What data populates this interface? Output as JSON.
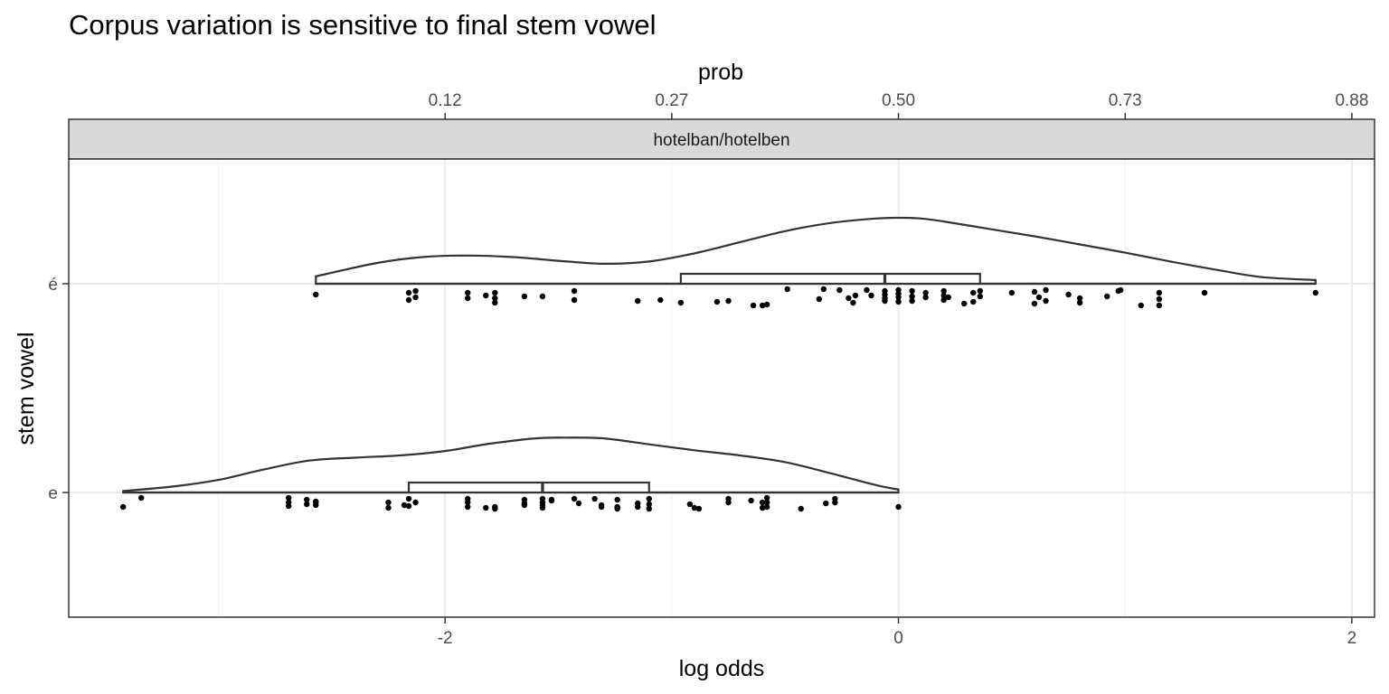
{
  "chart_data": {
    "type": "raincloud",
    "title": "Corpus variation is sensitive to final stem vowel",
    "facet_label": "hotelban/hotelben",
    "xlabel": "log odds",
    "ylabel": "stem vowel",
    "top_axis_label": "prob",
    "xlim": [
      -3.66,
      2.1
    ],
    "x_ticks": [
      -2,
      0,
      2
    ],
    "x_tick_labels": [
      "-2",
      "0",
      "2"
    ],
    "top_ticks": [
      -2,
      -1,
      0,
      1,
      2
    ],
    "top_tick_labels": [
      "0.12",
      "0.27",
      "0.50",
      "0.73",
      "0.88"
    ],
    "grid": true,
    "categories": [
      "é",
      "e"
    ],
    "groups": [
      {
        "label": "é",
        "density_x": [
          -2.57,
          -2.3,
          -2.1,
          -1.9,
          -1.7,
          -1.5,
          -1.3,
          -1.1,
          -0.9,
          -0.7,
          -0.5,
          -0.3,
          -0.1,
          0.0,
          0.1,
          0.2,
          0.4,
          0.6,
          0.8,
          1.0,
          1.2,
          1.4,
          1.6,
          1.84
        ],
        "density_y": [
          0.1,
          0.28,
          0.36,
          0.38,
          0.36,
          0.31,
          0.27,
          0.3,
          0.41,
          0.56,
          0.71,
          0.82,
          0.88,
          0.89,
          0.88,
          0.84,
          0.74,
          0.64,
          0.53,
          0.42,
          0.3,
          0.19,
          0.09,
          0.05
        ],
        "box": {
          "lower_whisker": -2.57,
          "q1": -0.96,
          "median": -0.06,
          "q3": 0.36,
          "upper_whisker": 1.84
        },
        "points": [
          {
            "x": -2.57,
            "j": -0.12
          },
          {
            "x": -2.16,
            "j": -0.1
          },
          {
            "x": -2.13,
            "j": -0.08
          },
          {
            "x": -2.13,
            "j": -0.15
          },
          {
            "x": -2.16,
            "j": -0.18
          },
          {
            "x": -1.9,
            "j": -0.1
          },
          {
            "x": -1.9,
            "j": -0.16
          },
          {
            "x": -1.82,
            "j": -0.13
          },
          {
            "x": -1.78,
            "j": -0.1
          },
          {
            "x": -1.78,
            "j": -0.16
          },
          {
            "x": -1.78,
            "j": -0.21
          },
          {
            "x": -1.65,
            "j": -0.14
          },
          {
            "x": -1.57,
            "j": -0.14
          },
          {
            "x": -1.43,
            "j": -0.08
          },
          {
            "x": -1.43,
            "j": -0.18
          },
          {
            "x": -1.15,
            "j": -0.19
          },
          {
            "x": -1.05,
            "j": -0.18
          },
          {
            "x": -0.96,
            "j": -0.21
          },
          {
            "x": -0.8,
            "j": -0.2
          },
          {
            "x": -0.75,
            "j": -0.19
          },
          {
            "x": -0.64,
            "j": -0.24
          },
          {
            "x": -0.6,
            "j": -0.24
          },
          {
            "x": -0.58,
            "j": -0.23
          },
          {
            "x": -0.49,
            "j": -0.06
          },
          {
            "x": -0.35,
            "j": -0.17
          },
          {
            "x": -0.33,
            "j": -0.06
          },
          {
            "x": -0.26,
            "j": -0.07
          },
          {
            "x": -0.22,
            "j": -0.16
          },
          {
            "x": -0.2,
            "j": -0.21
          },
          {
            "x": -0.19,
            "j": -0.13
          },
          {
            "x": -0.14,
            "j": -0.07
          },
          {
            "x": -0.12,
            "j": -0.13
          },
          {
            "x": -0.06,
            "j": -0.08
          },
          {
            "x": -0.06,
            "j": -0.12
          },
          {
            "x": -0.06,
            "j": -0.16
          },
          {
            "x": -0.06,
            "j": -0.19
          },
          {
            "x": 0.0,
            "j": -0.07
          },
          {
            "x": 0.0,
            "j": -0.11
          },
          {
            "x": 0.0,
            "j": -0.15
          },
          {
            "x": 0.0,
            "j": -0.2
          },
          {
            "x": 0.06,
            "j": -0.08
          },
          {
            "x": 0.06,
            "j": -0.14
          },
          {
            "x": 0.06,
            "j": -0.19
          },
          {
            "x": 0.12,
            "j": -0.1
          },
          {
            "x": 0.12,
            "j": -0.15
          },
          {
            "x": 0.2,
            "j": -0.08
          },
          {
            "x": 0.2,
            "j": -0.13
          },
          {
            "x": 0.2,
            "j": -0.18
          },
          {
            "x": 0.22,
            "j": -0.15
          },
          {
            "x": 0.29,
            "j": -0.22
          },
          {
            "x": 0.33,
            "j": -0.2
          },
          {
            "x": 0.33,
            "j": -0.1
          },
          {
            "x": 0.36,
            "j": -0.08
          },
          {
            "x": 0.36,
            "j": -0.14
          },
          {
            "x": 0.5,
            "j": -0.1
          },
          {
            "x": 0.6,
            "j": -0.09
          },
          {
            "x": 0.6,
            "j": -0.22
          },
          {
            "x": 0.62,
            "j": -0.15
          },
          {
            "x": 0.65,
            "j": -0.19
          },
          {
            "x": 0.65,
            "j": -0.07
          },
          {
            "x": 0.75,
            "j": -0.12
          },
          {
            "x": 0.8,
            "j": -0.16
          },
          {
            "x": 0.8,
            "j": -0.21
          },
          {
            "x": 0.92,
            "j": -0.14
          },
          {
            "x": 0.97,
            "j": -0.08
          },
          {
            "x": 0.98,
            "j": -0.07
          },
          {
            "x": 1.07,
            "j": -0.24
          },
          {
            "x": 1.15,
            "j": -0.1
          },
          {
            "x": 1.15,
            "j": -0.17
          },
          {
            "x": 1.15,
            "j": -0.24
          },
          {
            "x": 1.35,
            "j": -0.1
          },
          {
            "x": 1.84,
            "j": -0.1
          }
        ]
      },
      {
        "label": "e",
        "density_x": [
          -3.42,
          -3.2,
          -3.0,
          -2.8,
          -2.6,
          -2.4,
          -2.2,
          -2.0,
          -1.8,
          -1.6,
          -1.47,
          -1.3,
          -1.1,
          -0.9,
          -0.7,
          -0.5,
          -0.3,
          -0.1,
          0.0
        ],
        "density_y": [
          0.02,
          0.08,
          0.17,
          0.31,
          0.43,
          0.47,
          0.5,
          0.56,
          0.66,
          0.73,
          0.74,
          0.73,
          0.65,
          0.57,
          0.5,
          0.41,
          0.26,
          0.1,
          0.04
        ],
        "box": {
          "lower_whisker": -3.42,
          "q1": -2.16,
          "median": -1.57,
          "q3": -1.1,
          "upper_whisker": 0.0
        },
        "points": [
          {
            "x": -3.42,
            "j": -0.16
          },
          {
            "x": -3.34,
            "j": -0.06
          },
          {
            "x": -2.69,
            "j": -0.06
          },
          {
            "x": -2.69,
            "j": -0.11
          },
          {
            "x": -2.69,
            "j": -0.15
          },
          {
            "x": -2.61,
            "j": -0.08
          },
          {
            "x": -2.61,
            "j": -0.13
          },
          {
            "x": -2.57,
            "j": -0.11
          },
          {
            "x": -2.57,
            "j": -0.14
          },
          {
            "x": -2.57,
            "j": -0.1
          },
          {
            "x": -2.25,
            "j": -0.11
          },
          {
            "x": -2.25,
            "j": -0.17
          },
          {
            "x": -2.18,
            "j": -0.14
          },
          {
            "x": -2.16,
            "j": -0.07
          },
          {
            "x": -2.13,
            "j": -0.11
          },
          {
            "x": -2.16,
            "j": -0.15
          },
          {
            "x": -1.9,
            "j": -0.07
          },
          {
            "x": -1.9,
            "j": -0.11
          },
          {
            "x": -1.9,
            "j": -0.16
          },
          {
            "x": -1.82,
            "j": -0.17
          },
          {
            "x": -1.78,
            "j": -0.16
          },
          {
            "x": -1.78,
            "j": -0.18
          },
          {
            "x": -1.65,
            "j": -0.08
          },
          {
            "x": -1.65,
            "j": -0.12
          },
          {
            "x": -1.65,
            "j": -0.14
          },
          {
            "x": -1.57,
            "j": -0.07
          },
          {
            "x": -1.57,
            "j": -0.11
          },
          {
            "x": -1.57,
            "j": -0.14
          },
          {
            "x": -1.57,
            "j": -0.17
          },
          {
            "x": -1.53,
            "j": -0.08
          },
          {
            "x": -1.53,
            "j": -0.09
          },
          {
            "x": -1.43,
            "j": -0.07
          },
          {
            "x": -1.41,
            "j": -0.12
          },
          {
            "x": -1.34,
            "j": -0.07
          },
          {
            "x": -1.31,
            "j": -0.14
          },
          {
            "x": -1.31,
            "j": -0.16
          },
          {
            "x": -1.24,
            "j": -0.08
          },
          {
            "x": -1.24,
            "j": -0.16
          },
          {
            "x": -1.24,
            "j": -0.18
          },
          {
            "x": -1.15,
            "j": -0.12
          },
          {
            "x": -1.15,
            "j": -0.16
          },
          {
            "x": -1.1,
            "j": -0.07
          },
          {
            "x": -1.1,
            "j": -0.13
          },
          {
            "x": -1.1,
            "j": -0.18
          },
          {
            "x": -0.92,
            "j": -0.13
          },
          {
            "x": -0.9,
            "j": -0.17
          },
          {
            "x": -0.88,
            "j": -0.18
          },
          {
            "x": -0.75,
            "j": -0.07
          },
          {
            "x": -0.75,
            "j": -0.11
          },
          {
            "x": -0.65,
            "j": -0.09
          },
          {
            "x": -0.6,
            "j": -0.11
          },
          {
            "x": -0.58,
            "j": -0.06
          },
          {
            "x": -0.58,
            "j": -0.11
          },
          {
            "x": -0.6,
            "j": -0.17
          },
          {
            "x": -0.58,
            "j": -0.16
          },
          {
            "x": -0.43,
            "j": -0.18
          },
          {
            "x": -0.32,
            "j": -0.12
          },
          {
            "x": -0.28,
            "j": -0.07
          },
          {
            "x": -0.28,
            "j": -0.11
          },
          {
            "x": 0.0,
            "j": -0.16
          }
        ]
      }
    ]
  }
}
